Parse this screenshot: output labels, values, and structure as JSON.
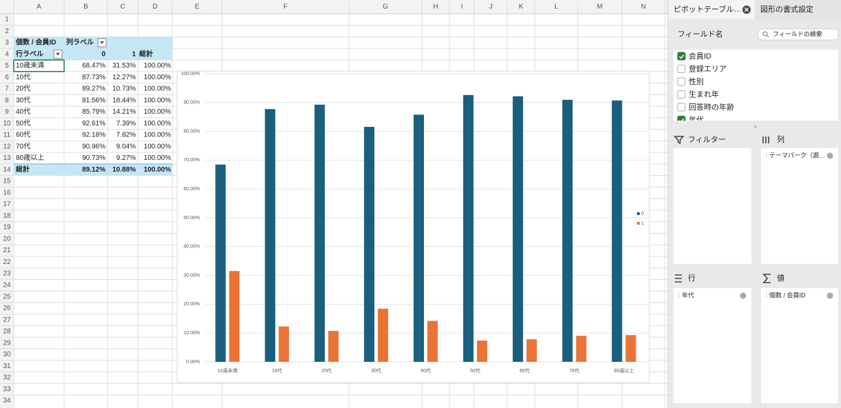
{
  "spreadsheet": {
    "columns": [
      "A",
      "B",
      "C",
      "D",
      "E",
      "F",
      "G",
      "H",
      "I",
      "J",
      "K",
      "L",
      "M",
      "N"
    ],
    "rows": [
      1,
      2,
      3,
      4,
      5,
      6,
      7,
      8,
      9,
      10,
      11,
      12,
      13,
      14,
      15,
      16,
      17,
      18,
      19,
      20,
      21,
      22,
      23,
      24,
      25,
      26,
      27,
      28,
      29,
      30,
      31,
      32,
      33,
      34
    ]
  },
  "pivot_table": {
    "header": [
      "個数 / 会員ID",
      "列ラベル"
    ],
    "col_header": [
      "行ラベル",
      "0",
      "1",
      "総計"
    ],
    "rows": [
      [
        "10歳未満",
        "68.47%",
        "31.53%",
        "100.00%"
      ],
      [
        "10代",
        "87.73%",
        "12.27%",
        "100.00%"
      ],
      [
        "20代",
        "89.27%",
        "10.73%",
        "100.00%"
      ],
      [
        "30代",
        "81.56%",
        "18.44%",
        "100.00%"
      ],
      [
        "40代",
        "85.79%",
        "14.21%",
        "100.00%"
      ],
      [
        "50代",
        "92.61%",
        "7.39%",
        "100.00%"
      ],
      [
        "60代",
        "92.18%",
        "7.82%",
        "100.00%"
      ],
      [
        "70代",
        "90.96%",
        "9.04%",
        "100.00%"
      ],
      [
        "80歳以上",
        "90.73%",
        "9.27%",
        "100.00%"
      ]
    ],
    "total": [
      "総計",
      "89.12%",
      "10.88%",
      "100.00%"
    ]
  },
  "chart_data": {
    "type": "bar",
    "categories": [
      "10歳未満",
      "10代",
      "20代",
      "30代",
      "40代",
      "50代",
      "60代",
      "70代",
      "80歳以上"
    ],
    "series": [
      {
        "name": "0",
        "color": "#1b5f7e",
        "values": [
          68.47,
          87.73,
          89.27,
          81.56,
          85.79,
          92.61,
          92.18,
          90.96,
          90.73
        ]
      },
      {
        "name": "1",
        "color": "#e97435",
        "values": [
          31.53,
          12.27,
          10.73,
          18.44,
          14.21,
          7.39,
          7.82,
          9.04,
          9.27
        ]
      }
    ],
    "ylim": [
      0,
      100
    ],
    "yticks": [
      {
        "value": 0,
        "label": "0.00%"
      },
      {
        "value": 10,
        "label": "10.00%"
      },
      {
        "value": 20,
        "label": "20.00%"
      },
      {
        "value": 30,
        "label": "30.00%"
      },
      {
        "value": 40,
        "label": "40.00%"
      },
      {
        "value": 50,
        "label": "50.00%"
      },
      {
        "value": 60,
        "label": "60.00%"
      },
      {
        "value": 70,
        "label": "70.00%"
      },
      {
        "value": 80,
        "label": "80.00%"
      },
      {
        "value": 90,
        "label": "90.00%"
      },
      {
        "value": 100,
        "label": "100.00%"
      }
    ],
    "grid": true,
    "legend": "right"
  },
  "panel": {
    "tabs": [
      "ピボットテーブル…",
      "図形の書式設定"
    ],
    "field_label": "フィールド名",
    "search_placeholder": "フィールドの検索",
    "fields": [
      {
        "label": "会員ID",
        "checked": true
      },
      {
        "label": "登録エリア",
        "checked": false
      },
      {
        "label": "性別",
        "checked": false
      },
      {
        "label": "生まれ年",
        "checked": false
      },
      {
        "label": "回答時の年齢",
        "checked": false
      },
      {
        "label": "年代",
        "checked": true
      }
    ],
    "filter": {
      "label": "フィルター",
      "items": []
    },
    "columns": {
      "label": "列",
      "items": [
        "テーマパーク（遊…"
      ]
    },
    "rows": {
      "label": "行",
      "items": [
        "年代"
      ]
    },
    "values": {
      "label": "値",
      "items": [
        "個数 / 会員ID"
      ]
    }
  }
}
